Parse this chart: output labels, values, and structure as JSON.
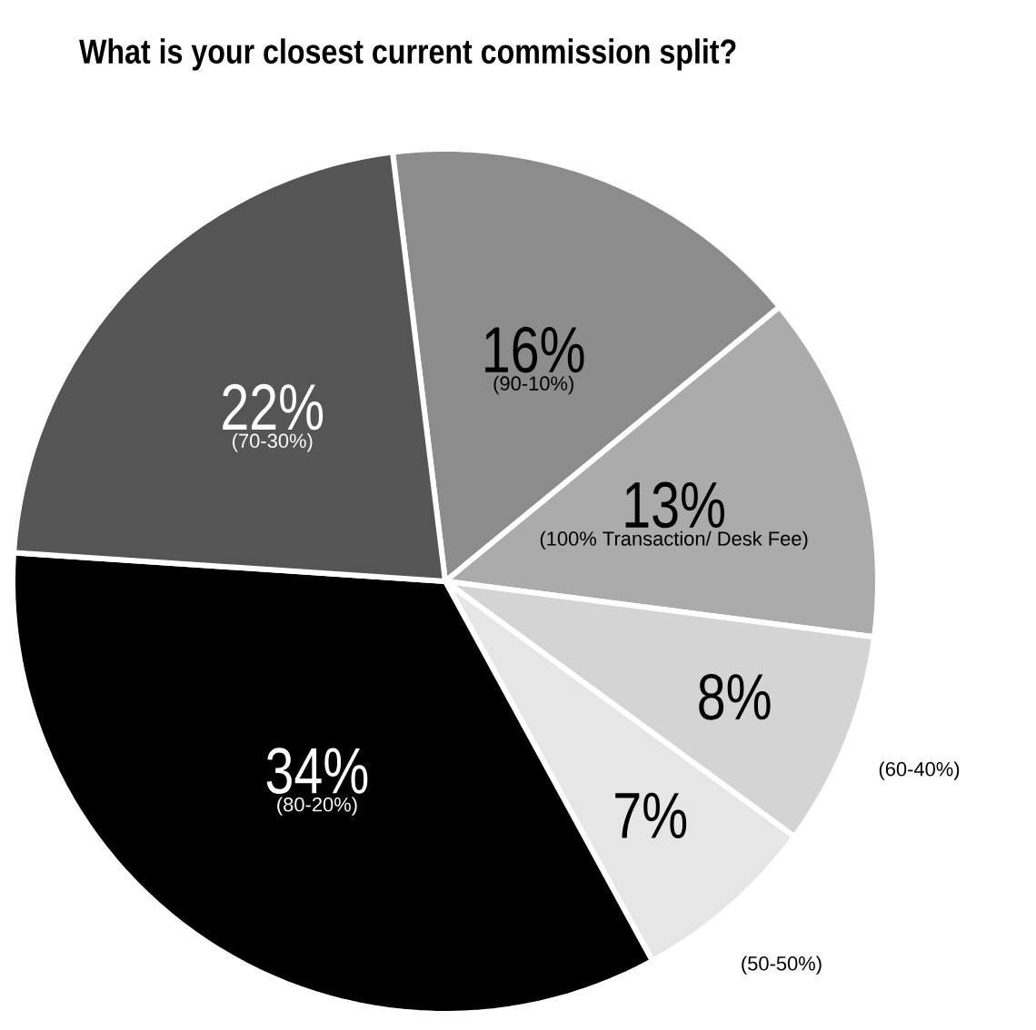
{
  "chart_data": {
    "type": "pie",
    "title": "What is your closest current commission split?",
    "categories": [
      "(90-10%)",
      "(100% Transaction/ Desk Fee)",
      "(60-40%)",
      "(50-50%)",
      "(80-20%)",
      "(70-30%)"
    ],
    "values": [
      16,
      13,
      8,
      7,
      34,
      22
    ],
    "value_labels": [
      "16%",
      "13%",
      "8%",
      "7%",
      "34%",
      "22%"
    ],
    "colors": [
      "#8c8c8c",
      "#ababab",
      "#d4d4d4",
      "#e6e6e6",
      "#000000",
      "#555555"
    ]
  }
}
